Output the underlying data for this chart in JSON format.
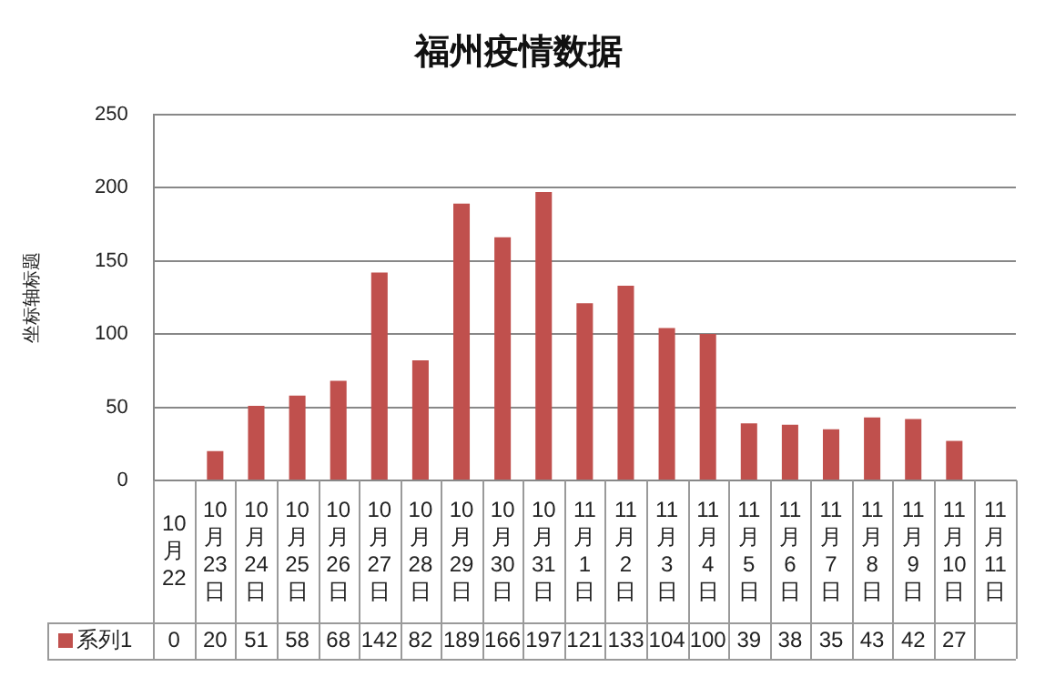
{
  "chart_data": {
    "type": "bar",
    "title": "福州疫情数据",
    "ylabel": "坐标轴标题",
    "categories": [
      "10月22",
      "10月23日",
      "10月24日",
      "10月25日",
      "10月26日",
      "10月27日",
      "10月28日",
      "10月29日",
      "10月30日",
      "10月31日",
      "11月1日",
      "11月2日",
      "11月3日",
      "11月4日",
      "11月5日",
      "11月6日",
      "11月7日",
      "11月8日",
      "11月9日",
      "11月10日",
      "11月11日"
    ],
    "series": [
      {
        "name": "系列1",
        "color": "#c0504d",
        "values": [
          0,
          20,
          51,
          58,
          68,
          142,
          82,
          189,
          166,
          197,
          121,
          133,
          104,
          100,
          39,
          38,
          35,
          43,
          42,
          27,
          null
        ]
      }
    ],
    "ylim": [
      0,
      250
    ],
    "yticks": [
      0,
      50,
      100,
      150,
      200,
      250
    ],
    "grid": "y",
    "legend": "bottom left",
    "data_labels": true
  }
}
